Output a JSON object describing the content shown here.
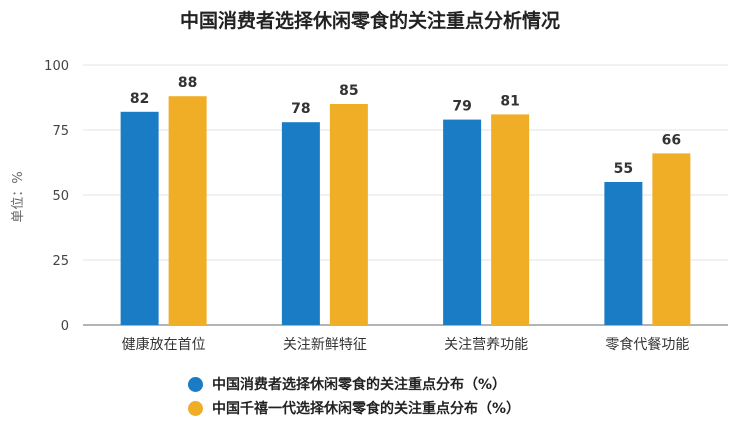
{
  "chart_data": {
    "type": "bar",
    "title": "中国消费者选择休闲零食的关注重点分析情况",
    "ylabel": "单位：%",
    "xlabel": "",
    "ylim": [
      0,
      100
    ],
    "yticks": [
      0,
      25,
      50,
      75,
      100
    ],
    "grid": true,
    "legend_position": "bottom",
    "categories": [
      "健康放在首位",
      "关注新鲜特征",
      "关注营养功能",
      "零食代餐功能"
    ],
    "series": [
      {
        "name": "中国消费者选择休闲零食的关注重点分布（%）",
        "color": "#1a7cc4",
        "values": [
          82,
          78,
          79,
          55
        ]
      },
      {
        "name": "中国千禧一代选择休闲零食的关注重点分布（%）",
        "color": "#f0ae27",
        "values": [
          88,
          85,
          81,
          66
        ]
      }
    ]
  }
}
